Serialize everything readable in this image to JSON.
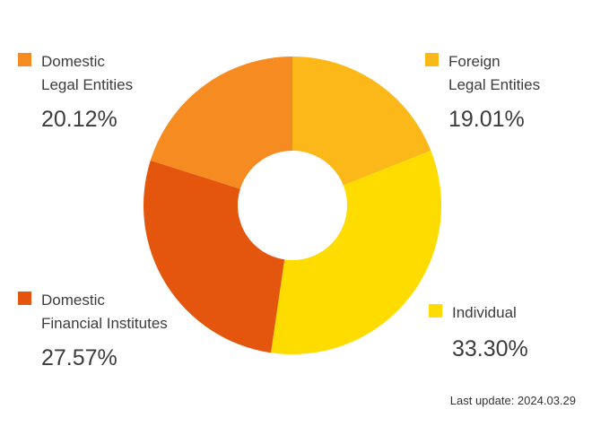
{
  "chart_data": {
    "type": "pie",
    "style": "donut",
    "slices": [
      {
        "key": "foreign_legal",
        "label_lines": [
          "Foreign",
          "Legal Entities"
        ],
        "value": 19.01,
        "display": "19.01%",
        "color": "#FBB818"
      },
      {
        "key": "individual",
        "label_lines": [
          "Individual"
        ],
        "value": 33.3,
        "display": "33.30%",
        "color": "#FFDC00"
      },
      {
        "key": "domestic_financial",
        "label_lines": [
          "Domestic",
          "Financial Institutes"
        ],
        "value": 27.57,
        "display": "27.57%",
        "color": "#E4550E"
      },
      {
        "key": "domestic_legal",
        "label_lines": [
          "Domestic",
          "Legal Entities"
        ],
        "value": 20.12,
        "display": "20.12%",
        "color": "#F58B21"
      }
    ],
    "legend": {
      "domestic_legal": {
        "line1": "Domestic",
        "line2": "Legal Entities",
        "pct": "20.12%",
        "color": "#F58B21"
      },
      "foreign_legal": {
        "line1": "Foreign",
        "line2": "Legal Entities",
        "pct": "19.01%",
        "color": "#FBB818"
      },
      "domestic_financial": {
        "line1": "Domestic",
        "line2": "Financial Institutes",
        "pct": "27.57%",
        "color": "#E4550E"
      },
      "individual": {
        "line1": "Individual",
        "pct": "33.30%",
        "color": "#FFDC00"
      }
    }
  },
  "footer": {
    "last_update": "Last update: 2024.03.29"
  }
}
